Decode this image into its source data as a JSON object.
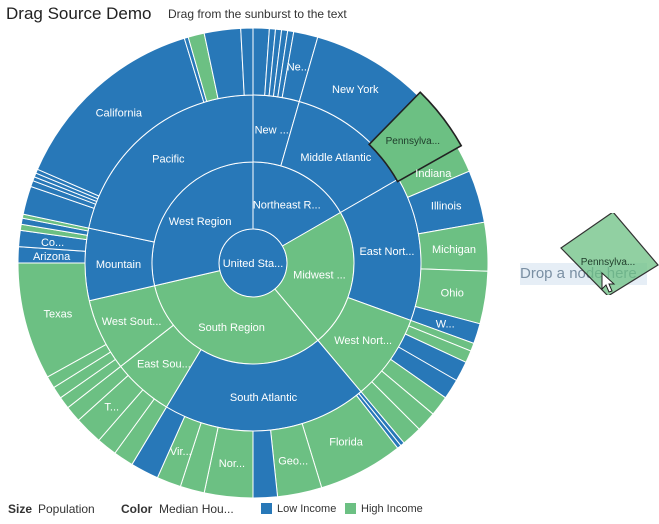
{
  "header": {
    "title": "Drag Source Demo",
    "subtitle": "Drag from the sunburst to the text"
  },
  "drop_target": {
    "label": "Drop a node here"
  },
  "drag_ghost": {
    "label": "Pennsylva..."
  },
  "legend": {
    "size_label": "Size",
    "size_value": "Population",
    "color_label": "Color",
    "color_value": "Median Hou...",
    "items": [
      {
        "label": "Low Income",
        "color": "#2878b8"
      },
      {
        "label": "High Income",
        "color": "#6cc083"
      }
    ]
  },
  "chart_data": {
    "type": "sunburst",
    "colors": {
      "low": "#2878b8",
      "high": "#6cc083",
      "selected_outline": "#222222"
    },
    "root": {
      "label": "United Sta...",
      "income": "low"
    },
    "regions": [
      {
        "label": "Northeast R...",
        "income": "low",
        "start": 0,
        "end": 60
      },
      {
        "label": "Midwest ...",
        "income": "high",
        "start": 60,
        "end": 140
      },
      {
        "label": "South Region",
        "income": "high",
        "start": 140,
        "end": 257
      },
      {
        "label": "West Region",
        "income": "low",
        "start": 257,
        "end": 360
      }
    ],
    "divisions": [
      {
        "label": "New ...",
        "income": "low",
        "start": 0,
        "end": 16
      },
      {
        "label": "Middle Atlantic",
        "income": "low",
        "start": 16,
        "end": 60
      },
      {
        "label": "East Nort...",
        "income": "low",
        "start": 60,
        "end": 110
      },
      {
        "label": "West Nort...",
        "income": "high",
        "start": 110,
        "end": 140
      },
      {
        "label": "South Atlantic",
        "income": "low",
        "start": 140,
        "end": 211
      },
      {
        "label": "East Sou...",
        "income": "high",
        "start": 211,
        "end": 232
      },
      {
        "label": "West Sout...",
        "income": "high",
        "start": 232,
        "end": 257
      },
      {
        "label": "Mountain",
        "income": "low",
        "start": 257,
        "end": 282
      },
      {
        "label": "Pacific",
        "income": "low",
        "start": 282,
        "end": 360
      }
    ],
    "states": [
      {
        "label": "",
        "income": "low",
        "start": 0,
        "end": 4
      },
      {
        "label": "",
        "income": "low",
        "start": 4,
        "end": 5.5
      },
      {
        "label": "",
        "income": "low",
        "start": 5.5,
        "end": 7
      },
      {
        "label": "",
        "income": "low",
        "start": 7,
        "end": 8.5
      },
      {
        "label": "",
        "income": "low",
        "start": 8.5,
        "end": 10
      },
      {
        "label": "Ne...",
        "income": "low",
        "start": 10,
        "end": 16
      },
      {
        "label": "New York",
        "income": "low",
        "start": 16,
        "end": 45
      },
      {
        "label": "Pennsylva...",
        "income": "high",
        "start": 45,
        "end": 60,
        "selected": true
      },
      {
        "label": "Indiana",
        "income": "high",
        "start": 60,
        "end": 67
      },
      {
        "label": "Illinois",
        "income": "low",
        "start": 67,
        "end": 80
      },
      {
        "label": "Michigan",
        "income": "high",
        "start": 80,
        "end": 92
      },
      {
        "label": "Ohio",
        "income": "high",
        "start": 92,
        "end": 105
      },
      {
        "label": "W...",
        "income": "low",
        "start": 105,
        "end": 110
      },
      {
        "label": "",
        "income": "high",
        "start": 110,
        "end": 112
      },
      {
        "label": "",
        "income": "high",
        "start": 112,
        "end": 115
      },
      {
        "label": "",
        "income": "low",
        "start": 115,
        "end": 120
      },
      {
        "label": "",
        "income": "low",
        "start": 120,
        "end": 125
      },
      {
        "label": "",
        "income": "high",
        "start": 125,
        "end": 130
      },
      {
        "label": "",
        "income": "high",
        "start": 130,
        "end": 135
      },
      {
        "label": "",
        "income": "high",
        "start": 135,
        "end": 140
      },
      {
        "label": "",
        "income": "low",
        "start": 140,
        "end": 141
      },
      {
        "label": "",
        "income": "low",
        "start": 141,
        "end": 142
      },
      {
        "label": "Florida",
        "income": "high",
        "start": 142,
        "end": 163
      },
      {
        "label": "Geo...",
        "income": "high",
        "start": 163,
        "end": 174
      },
      {
        "label": "",
        "income": "low",
        "start": 174,
        "end": 180
      },
      {
        "label": "Nor...",
        "income": "high",
        "start": 180,
        "end": 192
      },
      {
        "label": "",
        "income": "high",
        "start": 192,
        "end": 198
      },
      {
        "label": "Vir...",
        "income": "high",
        "start": 198,
        "end": 204
      },
      {
        "label": "",
        "income": "low",
        "start": 204,
        "end": 211
      },
      {
        "label": "",
        "income": "high",
        "start": 211,
        "end": 216
      },
      {
        "label": "",
        "income": "high",
        "start": 216,
        "end": 221
      },
      {
        "label": "T...",
        "income": "high",
        "start": 221,
        "end": 228
      },
      {
        "label": "",
        "income": "high",
        "start": 228,
        "end": 232
      },
      {
        "label": "",
        "income": "high",
        "start": 232,
        "end": 235
      },
      {
        "label": "",
        "income": "high",
        "start": 235,
        "end": 238
      },
      {
        "label": "",
        "income": "high",
        "start": 238,
        "end": 241
      },
      {
        "label": "Texas",
        "income": "high",
        "start": 241,
        "end": 270
      },
      {
        "label": "Arizona",
        "income": "low",
        "start": 270,
        "end": 274
      },
      {
        "label": "Co...",
        "income": "low",
        "start": 274,
        "end": 278
      },
      {
        "label": "",
        "income": "high",
        "start": 278,
        "end": 279.5
      },
      {
        "label": "",
        "income": "low",
        "start": 279.5,
        "end": 281
      },
      {
        "label": "",
        "income": "high",
        "start": 281,
        "end": 282
      },
      {
        "label": "",
        "income": "low",
        "start": 282,
        "end": 289
      },
      {
        "label": "",
        "income": "low",
        "start": 289,
        "end": 290.5
      },
      {
        "label": "",
        "income": "low",
        "start": 290.5,
        "end": 291.5
      },
      {
        "label": "",
        "income": "low",
        "start": 291.5,
        "end": 292.5
      },
      {
        "label": "",
        "income": "low",
        "start": 292.5,
        "end": 293.5
      },
      {
        "label": "California",
        "income": "low",
        "start": 293.5,
        "end": 343
      },
      {
        "label": "",
        "income": "low",
        "start": 343,
        "end": 344
      },
      {
        "label": "",
        "income": "high",
        "start": 344,
        "end": 348
      },
      {
        "label": "",
        "income": "low",
        "start": 348,
        "end": 357
      },
      {
        "label": "",
        "income": "low",
        "start": 357,
        "end": 360
      }
    ]
  }
}
